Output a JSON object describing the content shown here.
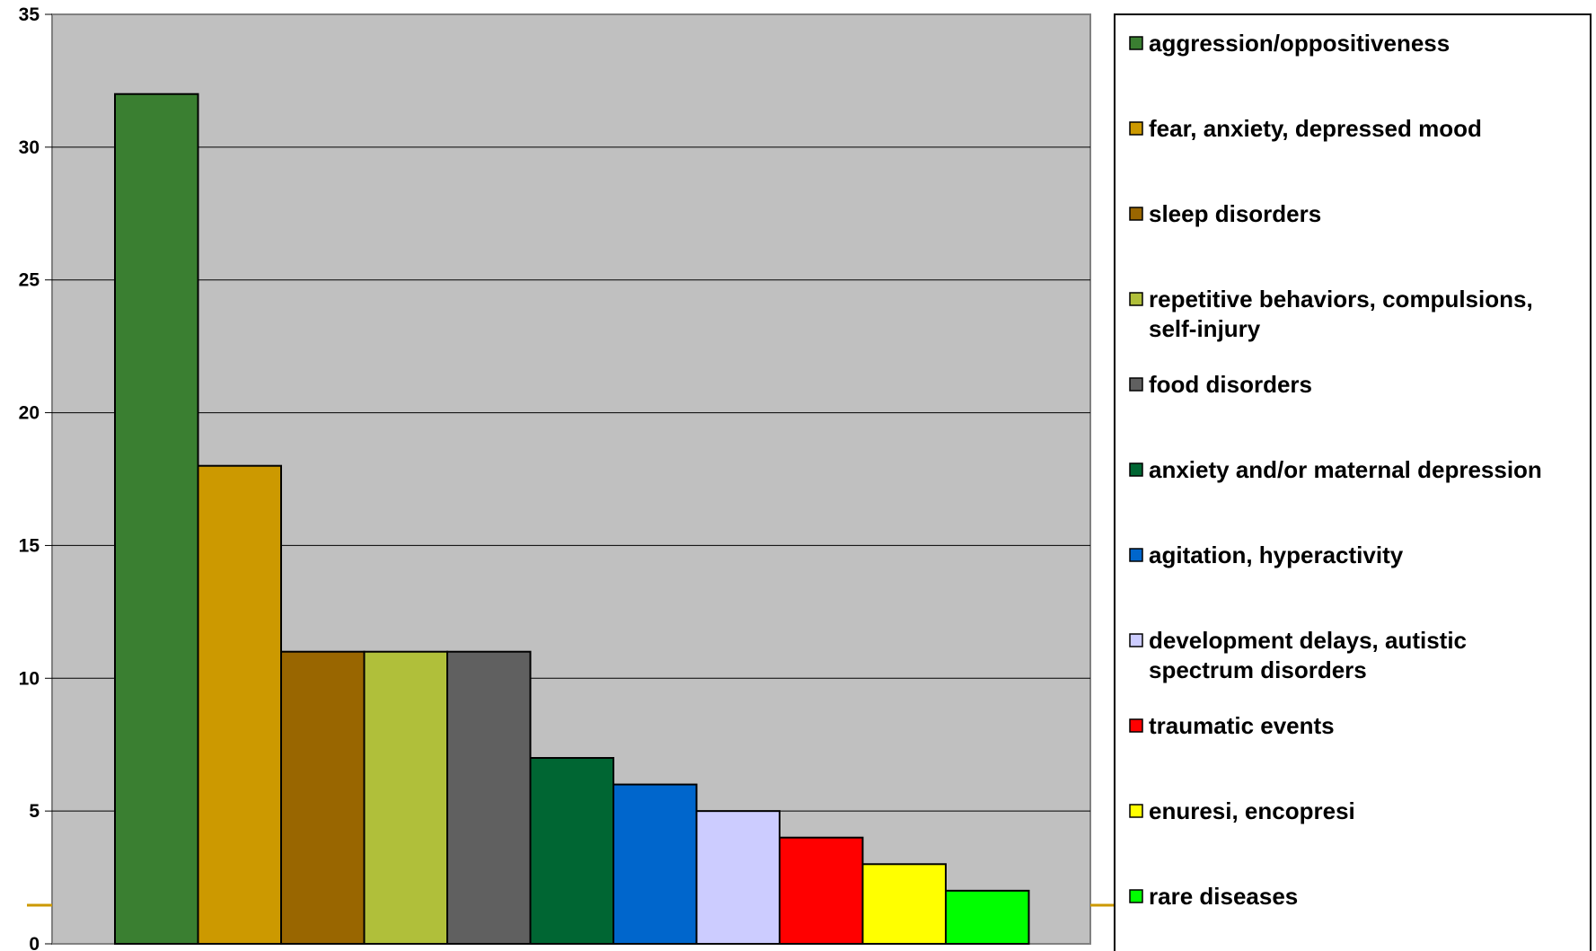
{
  "chart_data": {
    "type": "bar",
    "title": "",
    "xlabel": "",
    "ylabel": "",
    "ylim": [
      0,
      35
    ],
    "yticks": [
      0,
      5,
      10,
      15,
      20,
      25,
      30,
      35
    ],
    "grid": true,
    "legend_position": "right",
    "plot_background": "#C0C0C0",
    "categories": [
      "aggression/oppositiveness",
      "fear, anxiety, depressed mood",
      "sleep disorders",
      "repetitive behaviors, compulsions, self-injury",
      "food disorders",
      "anxiety and/or maternal depression",
      "agitation, hyperactivity",
      "development delays, autistic spectrum disorders",
      "traumatic events",
      "enuresi, encopresi",
      "rare diseases"
    ],
    "legend_lines": [
      [
        "aggression/oppositiveness"
      ],
      [
        "fear, anxiety, depressed mood"
      ],
      [
        "sleep disorders"
      ],
      [
        "repetitive behaviors, compulsions,",
        "self-injury"
      ],
      [
        "food disorders"
      ],
      [
        "anxiety and/or maternal depression"
      ],
      [
        "agitation, hyperactivity"
      ],
      [
        "development delays, autistic",
        "spectrum disorders"
      ],
      [
        "traumatic events"
      ],
      [
        "enuresi, encopresi"
      ],
      [
        "rare diseases"
      ]
    ],
    "values": [
      32,
      18,
      11,
      11,
      11,
      7,
      6,
      5,
      4,
      3,
      2
    ],
    "colors": [
      "#3A7F31",
      "#CC9900",
      "#996600",
      "#B0BF3A",
      "#606060",
      "#006633",
      "#0066CC",
      "#CCCCFF",
      "#FF0000",
      "#FFFF00",
      "#00FF00"
    ]
  }
}
